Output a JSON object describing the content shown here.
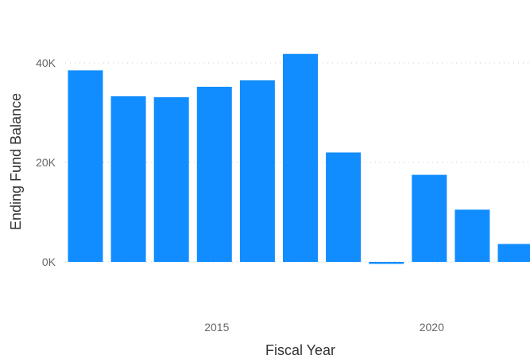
{
  "chart_data": {
    "type": "bar",
    "title": "",
    "xlabel": "Fiscal Year",
    "ylabel": "Ending Fund Balance",
    "x": [
      2012,
      2013,
      2014,
      2015,
      2016,
      2017,
      2018,
      2019,
      2020,
      2021,
      2022
    ],
    "values": [
      38500,
      33300,
      33100,
      35200,
      36500,
      41800,
      22000,
      -400,
      17500,
      10500,
      3600
    ],
    "x_ticks": [
      {
        "value": 2015,
        "label": "2015"
      },
      {
        "value": 2020,
        "label": "2020"
      }
    ],
    "y_ticks": [
      {
        "value": 0,
        "label": "0K"
      },
      {
        "value": 20000,
        "label": "20K"
      },
      {
        "value": 40000,
        "label": "40K"
      }
    ],
    "ylim": [
      -1000,
      48000
    ],
    "grid": true,
    "legend": "none",
    "colors": {
      "bar": "#118DFF",
      "gridline": "#c8c8c8",
      "tick_text": "#666666",
      "axis_title": "#333333"
    }
  }
}
